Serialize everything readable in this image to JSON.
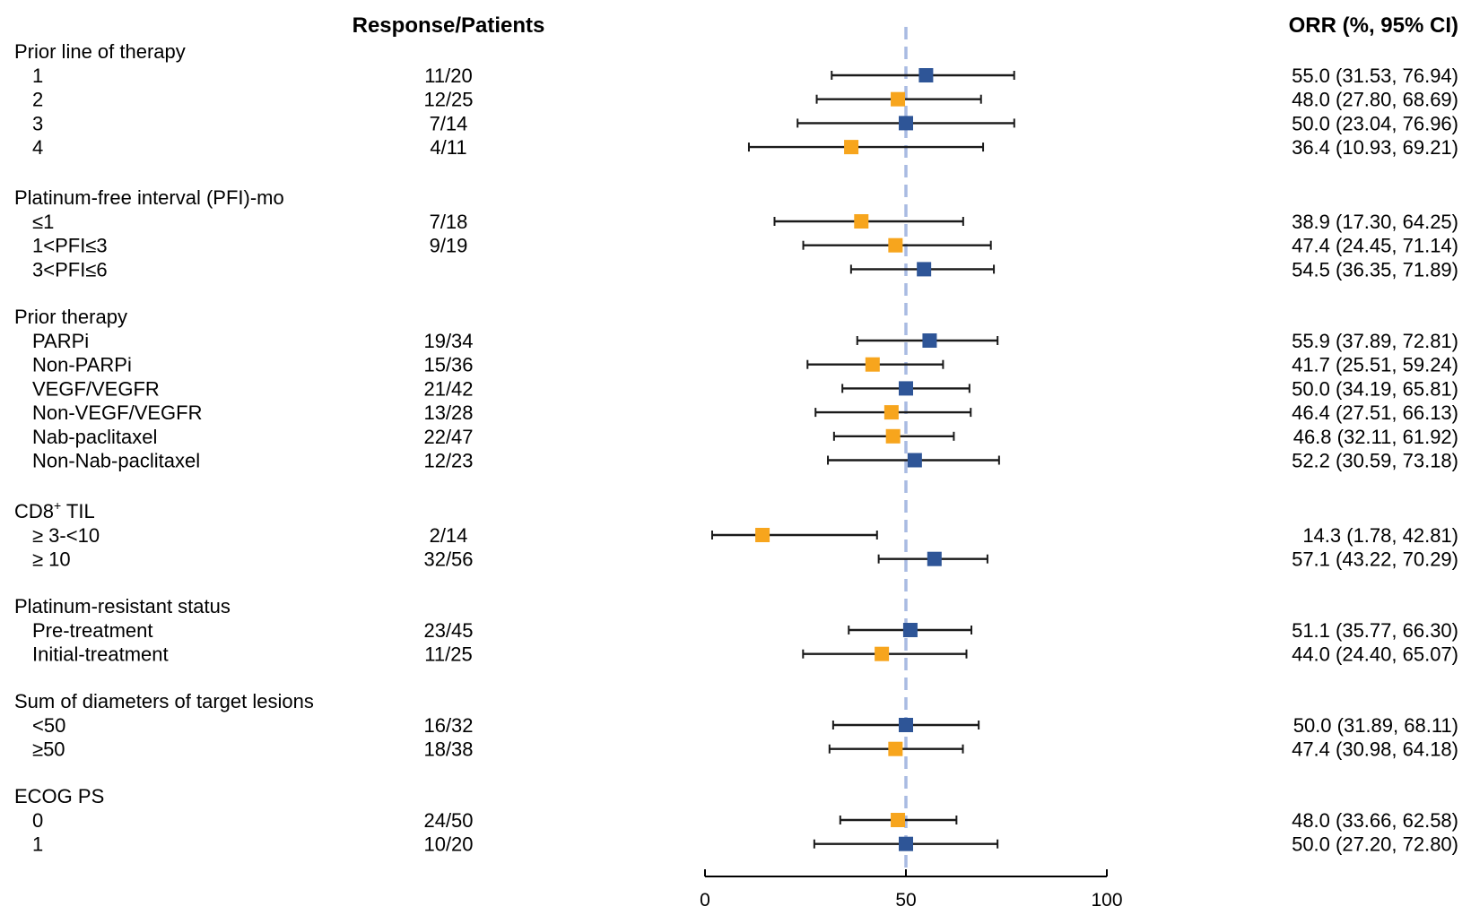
{
  "chart_data": {
    "type": "forest",
    "headers": {
      "response": "Response/Patients",
      "orr": "ORR  (%, 95% CI)"
    },
    "xlim": [
      0,
      100
    ],
    "xticks": [
      0,
      50,
      100
    ],
    "reference_line": 50,
    "colors": {
      "blue": "#2e5597",
      "orange": "#f7a51d",
      "ref": "#a9bbe2"
    },
    "groups": [
      {
        "title": "Prior line of therapy",
        "rows": [
          {
            "label": "1",
            "resp": "11/20",
            "orr": 55.0,
            "lo": 31.53,
            "hi": 76.94,
            "text": "55.0 (31.53, 76.94)",
            "color": "blue"
          },
          {
            "label": "2",
            "resp": "12/25",
            "orr": 48.0,
            "lo": 27.8,
            "hi": 68.69,
            "text": "48.0 (27.80, 68.69)",
            "color": "orange"
          },
          {
            "label": "3",
            "resp": "7/14",
            "orr": 50.0,
            "lo": 23.04,
            "hi": 76.96,
            "text": "50.0 (23.04, 76.96)",
            "color": "blue"
          },
          {
            "label": "4",
            "resp": "4/11",
            "orr": 36.4,
            "lo": 10.93,
            "hi": 69.21,
            "text": "36.4 (10.93, 69.21)",
            "color": "orange"
          }
        ]
      },
      {
        "title": "Platinum-free interval (PFI)-mo",
        "rows": [
          {
            "label": "≤1",
            "resp": "7/18",
            "orr": 38.9,
            "lo": 17.3,
            "hi": 64.25,
            "text": "38.9 (17.30, 64.25)",
            "color": "orange"
          },
          {
            "label": "1<PFI≤3",
            "resp": "9/19",
            "orr": 47.4,
            "lo": 24.45,
            "hi": 71.14,
            "text": "47.4 (24.45, 71.14)",
            "color": "orange"
          },
          {
            "label": "3<PFI≤6",
            "resp": "",
            "orr": 54.5,
            "lo": 36.35,
            "hi": 71.89,
            "text": "54.5 (36.35, 71.89)",
            "color": "blue"
          }
        ]
      },
      {
        "title": "Prior therapy",
        "rows": [
          {
            "label": "PARPi",
            "resp": "19/34",
            "orr": 55.9,
            "lo": 37.89,
            "hi": 72.81,
            "text": "55.9 (37.89, 72.81)",
            "color": "blue"
          },
          {
            "label": "Non-PARPi",
            "resp": "15/36",
            "orr": 41.7,
            "lo": 25.51,
            "hi": 59.24,
            "text": "41.7 (25.51, 59.24)",
            "color": "orange"
          },
          {
            "label": "VEGF/VEGFR",
            "resp": "21/42",
            "orr": 50.0,
            "lo": 34.19,
            "hi": 65.81,
            "text": "50.0 (34.19, 65.81)",
            "color": "blue"
          },
          {
            "label": "Non-VEGF/VEGFR",
            "resp": "13/28",
            "orr": 46.4,
            "lo": 27.51,
            "hi": 66.13,
            "text": "46.4 (27.51, 66.13)",
            "color": "orange"
          },
          {
            "label": "Nab-paclitaxel",
            "resp": "22/47",
            "orr": 46.8,
            "lo": 32.11,
            "hi": 61.92,
            "text": "46.8 (32.11, 61.92)",
            "color": "orange"
          },
          {
            "label": "Non-Nab-paclitaxel",
            "resp": "12/23",
            "orr": 52.2,
            "lo": 30.59,
            "hi": 73.18,
            "text": "52.2 (30.59, 73.18)",
            "color": "blue"
          }
        ]
      },
      {
        "title": "CD8",
        "title_sup": "+",
        "title_suffix": " TIL",
        "rows": [
          {
            "label": "≥ 3-<10",
            "resp": "2/14",
            "orr": 14.3,
            "lo": 1.78,
            "hi": 42.81,
            "text": "14.3 (1.78, 42.81)",
            "color": "orange"
          },
          {
            "label": "≥ 10",
            "resp": "32/56",
            "orr": 57.1,
            "lo": 43.22,
            "hi": 70.29,
            "text": "57.1 (43.22, 70.29)",
            "color": "blue"
          }
        ]
      },
      {
        "title": "Platinum-resistant status",
        "rows": [
          {
            "label": "Pre-treatment",
            "resp": "23/45",
            "orr": 51.1,
            "lo": 35.77,
            "hi": 66.3,
            "text": "51.1 (35.77, 66.30)",
            "color": "blue"
          },
          {
            "label": "Initial-treatment",
            "resp": "11/25",
            "orr": 44.0,
            "lo": 24.4,
            "hi": 65.07,
            "text": "44.0 (24.40, 65.07)",
            "color": "orange"
          }
        ]
      },
      {
        "title": "Sum of diameters of target lesions",
        "rows": [
          {
            "label": "<50",
            "resp": "16/32",
            "orr": 50.0,
            "lo": 31.89,
            "hi": 68.11,
            "text": "50.0 (31.89, 68.11)",
            "color": "blue"
          },
          {
            "label": "≥50",
            "resp": "18/38",
            "orr": 47.4,
            "lo": 30.98,
            "hi": 64.18,
            "text": "47.4 (30.98, 64.18)",
            "color": "orange"
          }
        ]
      },
      {
        "title": "ECOG PS",
        "rows": [
          {
            "label": "0",
            "resp": "24/50",
            "orr": 48.0,
            "lo": 33.66,
            "hi": 62.58,
            "text": "48.0 (33.66, 62.58)",
            "color": "orange"
          },
          {
            "label": "1",
            "resp": "10/20",
            "orr": 50.0,
            "lo": 27.2,
            "hi": 72.8,
            "text": "50.0 (27.20, 72.80)",
            "color": "blue"
          }
        ]
      }
    ]
  }
}
